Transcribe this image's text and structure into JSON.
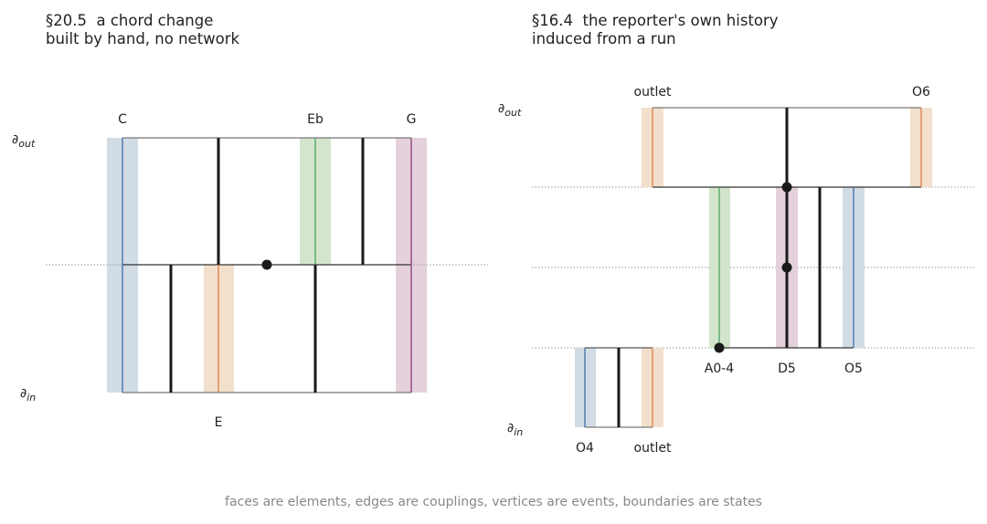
{
  "left_panel": {
    "title_line1": "§20.5  a chord change",
    "title_line2": "built by hand, no network",
    "boundary_out": "∂",
    "boundary_out_sub": "out",
    "boundary_in": "∂",
    "boundary_in_sub": "in",
    "labels": {
      "C": "C",
      "Eb": "Eb",
      "G": "G",
      "E": "E"
    }
  },
  "right_panel": {
    "title_line1": "§16.4  the reporter's own history",
    "title_line2": "induced from a run",
    "boundary_out": "∂",
    "boundary_out_sub": "out",
    "boundary_in": "∂",
    "boundary_in_sub": "in",
    "labels": {
      "outlet_top": "outlet",
      "O6": "O6",
      "A0_4": "A0-4",
      "D5": "D5",
      "O5": "O5",
      "O4": "O4",
      "outlet_bottom": "outlet"
    }
  },
  "caption": "faces are elements, edges are couplings, vertices are events, boundaries are states",
  "colors": {
    "blue": "#4c72a8",
    "blue_band": "#d1dce5",
    "orange": "#dd8452",
    "orange_band": "#f2e0cc",
    "green": "#55a868",
    "green_band": "#d4e5cd",
    "purple": "#8e4a7b",
    "purple_band": "#e5d1dc",
    "edge": "#1a1a1a",
    "frame": "#777777",
    "dotted": "#999999"
  }
}
